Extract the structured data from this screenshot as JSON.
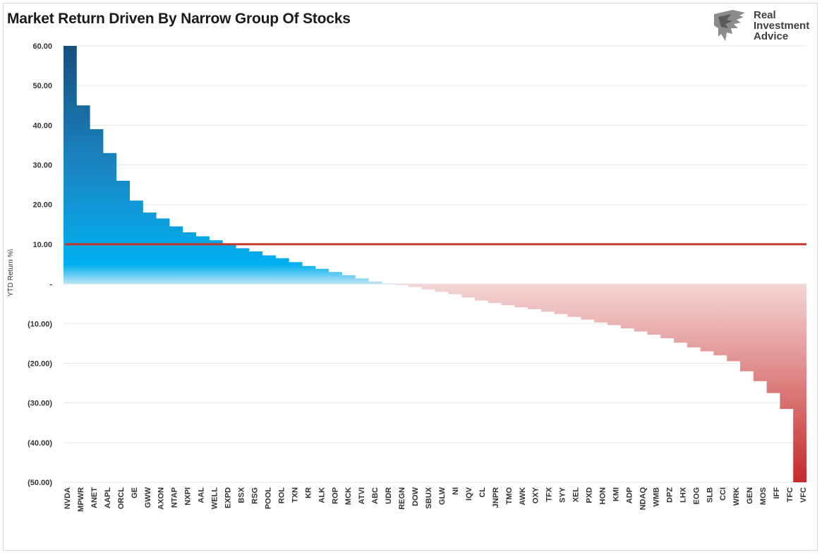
{
  "title": "Market Return Driven By Narrow Group Of Stocks",
  "logo": {
    "line1": "Real",
    "line2": "Investment",
    "line3": "Advice",
    "icon": "eagle-icon"
  },
  "colors": {
    "positive_top": "#174f7c",
    "positive_mid": "#1a8ac8",
    "positive_bottom": "#00b0f0",
    "negative_top": "#f4d6d6",
    "negative_bottom": "#c52a2a",
    "reference_line": "#c0392b",
    "grid": "#e6e6e6"
  },
  "chart_data": {
    "type": "area",
    "title": "Market Return Driven By Narrow Group Of Stocks",
    "xlabel": "",
    "ylabel": "YTD Return %\\",
    "ylim": [
      -50,
      60
    ],
    "yticks": [
      60,
      50,
      40,
      30,
      20,
      10,
      0,
      -10,
      -20,
      -30,
      -40,
      -50
    ],
    "ytick_labels": [
      "60.00",
      "50.00",
      "40.00",
      "30.00",
      "20.00",
      "10.00",
      "-",
      "(10.00)",
      "(20.00)",
      "(30.00)",
      "(40.00)",
      "(50.00)"
    ],
    "grid": true,
    "reference_line": {
      "value": 10
    },
    "categories": [
      "NVDA",
      "MPWR",
      "ANET",
      "AAPL",
      "ORCL",
      "GE",
      "GWW",
      "AXON",
      "NTAP",
      "NXPI",
      "AAL",
      "WELL",
      "EXPD",
      "BSX",
      "RSG",
      "POOL",
      "ROL",
      "TXN",
      "KR",
      "ALK",
      "ROP",
      "MCK",
      "ATVI",
      "ABC",
      "UDR",
      "REGN",
      "DOW",
      "SBUX",
      "GLW",
      "NI",
      "IQV",
      "CL",
      "JNPR",
      "TMO",
      "AWK",
      "OXY",
      "TFX",
      "SYY",
      "XEL",
      "PXD",
      "HON",
      "KMI",
      "ADP",
      "NDAQ",
      "WMB",
      "DPZ",
      "LHX",
      "EOG",
      "SLB",
      "CCI",
      "WRK",
      "GEN",
      "MOS",
      "IFF",
      "TFC",
      "VFC"
    ],
    "values": [
      60.0,
      45.0,
      39.0,
      33.0,
      26.0,
      21.0,
      18.0,
      16.5,
      14.5,
      13.0,
      12.0,
      11.0,
      10.0,
      9.0,
      8.2,
      7.2,
      6.5,
      5.5,
      4.5,
      3.8,
      3.0,
      2.2,
      1.4,
      0.6,
      0.1,
      -0.3,
      -0.8,
      -1.4,
      -2.0,
      -2.6,
      -3.4,
      -4.2,
      -4.8,
      -5.4,
      -5.9,
      -6.4,
      -7.0,
      -7.6,
      -8.3,
      -9.0,
      -9.7,
      -10.4,
      -11.2,
      -12.0,
      -12.8,
      -13.7,
      -14.8,
      -16.0,
      -17.0,
      -18.0,
      -19.5,
      -22.0,
      -24.5,
      -27.5,
      -31.5,
      -50.0
    ]
  }
}
